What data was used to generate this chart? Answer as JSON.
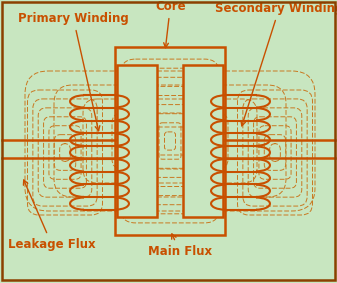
{
  "bg_color": "#c8e6c0",
  "border_color": "#8B4000",
  "orange_color": "#c85000",
  "dashed_color": "#c87820",
  "label_fontsize": 8.5,
  "label_color": "#c85000",
  "labels": {
    "primary_winding": "Primary Winding",
    "core": "Core",
    "secondary_winding": "Secondary Winding",
    "leakage_flux": "Leakage Flux",
    "main_flux": "Main Flux"
  },
  "figsize": [
    3.37,
    2.83
  ],
  "dpi": 100
}
